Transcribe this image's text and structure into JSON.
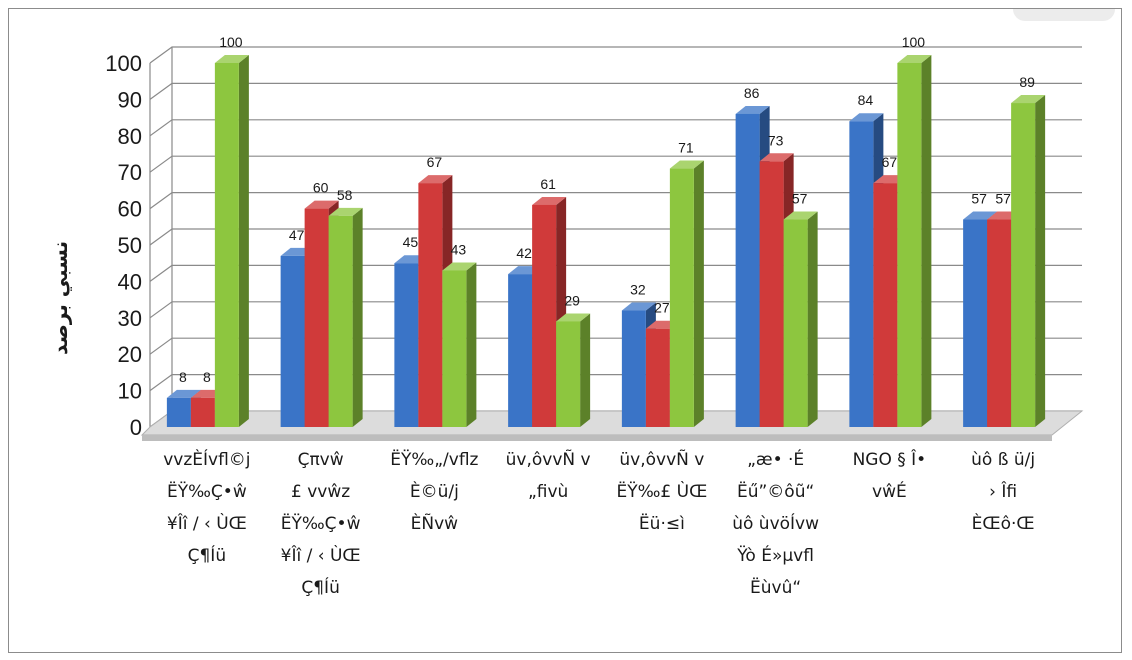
{
  "chart_data": {
    "type": "bar",
    "style": "3d-clustered-column",
    "ylabel": "ﻧﺴﺒﻲ ﺑﺮﺻﺪ",
    "ylim": [
      0,
      100
    ],
    "ytick_step": 10,
    "grid": true,
    "legend": "none",
    "categories": [
      "vvzÈÍvfl©j\nËŸ‰Ç•ŵ\n¥Îî / ‹ ÙŒ\nÇ¶Íü",
      "Çπvŵ\n£ vvŵz\nËŸ‰Ç•ŵ\n¥Îî / ‹ ÙŒ\nÇ¶Íü",
      "ËŸ‰„/vflz\nÈ©ü/j\nÈÑvŵ",
      "üv,ôvvÑ v\n„fivù",
      "üv,ôvvÑ v\nËŸ‰£ ÙŒ\nËü·≤ì",
      "„æ• ·É\nËű”©ôũ“\nùô ùvöÍvw\nŸò É»µvfl\nËùvû“",
      "NGO § Î• vŵÉ",
      "ùô ß ü/j\n› Îfi\nÈŒô·Œ"
    ],
    "series": [
      {
        "color": "#3a74c7",
        "values": [
          8,
          47,
          45,
          42,
          32,
          86,
          84,
          57
        ]
      },
      {
        "color": "#d03a3a",
        "values": [
          8,
          60,
          67,
          61,
          27,
          73,
          67,
          57
        ]
      },
      {
        "color": "#8dc63f",
        "values": [
          100,
          58,
          43,
          29,
          71,
          57,
          100,
          89
        ]
      }
    ]
  }
}
